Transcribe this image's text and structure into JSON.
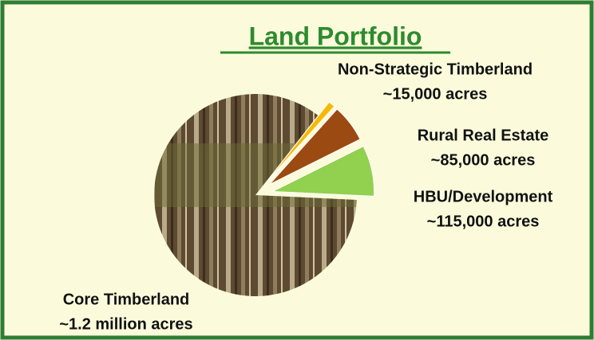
{
  "chart_data": {
    "type": "pie",
    "title": "Land Portfolio",
    "categories": [
      "Non-Strategic Timberland",
      "Rural Real Estate",
      "HBU/Development",
      "Core Timberland"
    ],
    "values": [
      15000,
      85000,
      115000,
      1200000
    ],
    "value_labels": [
      "~15,000 acres",
      "~85,000 acres",
      "~115,000 acres",
      "~1.2 million acres"
    ],
    "colors": [
      "#f7b900",
      "#9b4a12",
      "#92d050",
      "#6e5a3c"
    ]
  }
}
